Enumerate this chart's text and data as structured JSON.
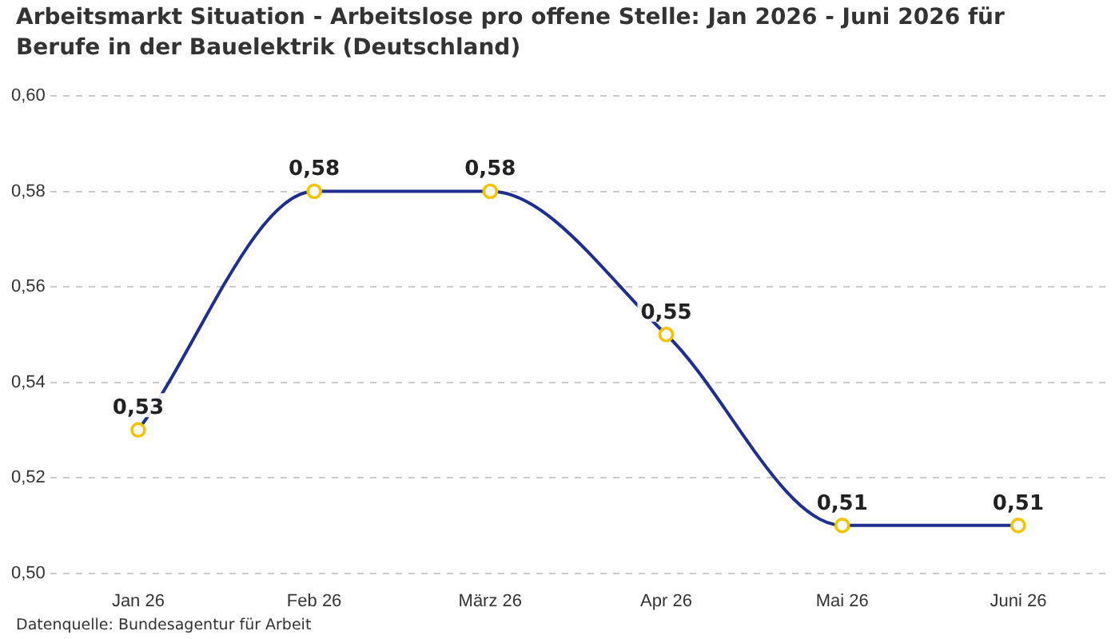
{
  "chart_data": {
    "type": "line",
    "title": "Arbeitsmarkt Situation - Arbeitslose pro offene Stelle: Jan 2026 - Juni 2026 für Berufe in der Bauelektrik (Deutschland)",
    "categories": [
      "Jan 26",
      "Feb 26",
      "März 26",
      "Apr 26",
      "Mai 26",
      "Juni 26"
    ],
    "series": [
      {
        "color": "#1f2f8f",
        "values": [
          0.53,
          0.58,
          0.58,
          0.55,
          0.51,
          0.51
        ],
        "value_labels": [
          "0,53",
          "0,58",
          "0,58",
          "0,55",
          "0,51",
          "0,51"
        ]
      }
    ],
    "ylim": [
      0.5,
      0.6
    ],
    "yticks": [
      {
        "value": 0.5,
        "label": "0,50"
      },
      {
        "value": 0.52,
        "label": "0,52"
      },
      {
        "value": 0.54,
        "label": "0,54"
      },
      {
        "value": 0.56,
        "label": "0,56"
      },
      {
        "value": 0.58,
        "label": "0,58"
      },
      {
        "value": 0.6,
        "label": "0,60"
      }
    ],
    "grid": "y",
    "legend": false,
    "marker": "circle",
    "line_style": "solid",
    "annotations": [
      "Datenquelle: Bundesagentur für Arbeit"
    ]
  }
}
